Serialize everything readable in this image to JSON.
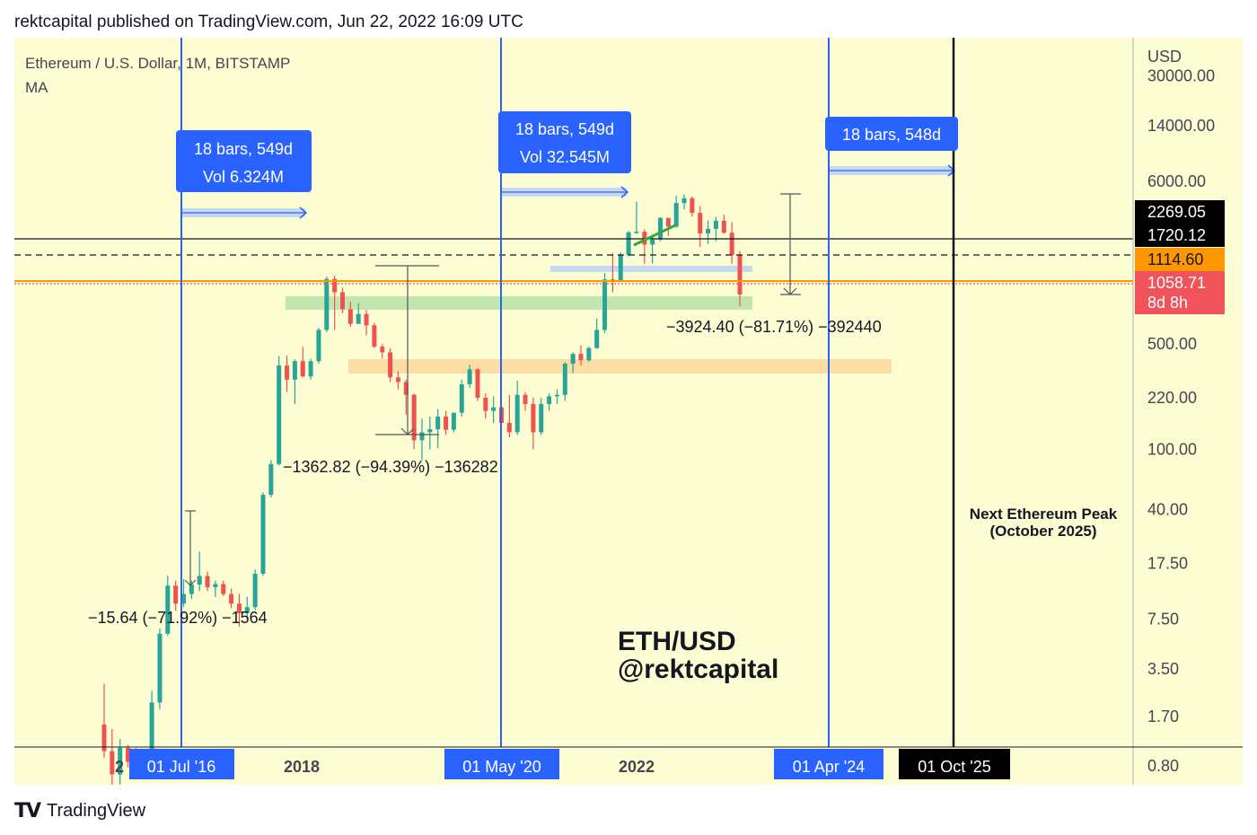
{
  "header": {
    "publisher_line": "rektcapital published on TradingView.com, Jun 22, 2022 16:09 UTC"
  },
  "footer": {
    "logo_icon": "tradingview-logo-icon",
    "brand": "TradingView"
  },
  "chart_data": {
    "type": "candlestick",
    "symbol_title": "Ethereum / U.S. Dollar, 1M, BITSTAMP",
    "indicator_label": "MA",
    "axis_unit": "USD",
    "y_scale": "log",
    "y_ticks": [
      "30000.00",
      "14000.00",
      "6000.00",
      "500.00",
      "220.00",
      "100.00",
      "40.00",
      "17.50",
      "7.50",
      "3.50",
      "1.70",
      "0.80"
    ],
    "x_ticks": [
      "2",
      "2018",
      "2022"
    ],
    "cycle_markers": [
      {
        "label": "01 Jul '16",
        "measure": [
          "18 bars, 549d",
          "Vol 6.324M"
        ]
      },
      {
        "label": "01 May '20",
        "measure": [
          "18 bars, 549d",
          "Vol 32.545M"
        ]
      },
      {
        "label": "01 Apr '24",
        "measure": [
          "18 bars, 548d"
        ]
      }
    ],
    "peak_marker": {
      "label": "01 Oct '25",
      "annotation": [
        "Next Ethereum Peak",
        "(October 2025)"
      ]
    },
    "drawdowns": [
      "−15.64 (−71.92%) −1564",
      "−1362.82 (−94.39%) −136282",
      "−3924.40 (−81.71%) −392440"
    ],
    "price_labels": [
      {
        "value": "2269.05",
        "bg": "#000000",
        "fg": "#ffffff"
      },
      {
        "value": "1720.12",
        "bg": "#000000",
        "fg": "#ffffff"
      },
      {
        "value": "1114.60",
        "bg": "#ff9800",
        "fg": "#131722"
      },
      {
        "value": "1058.71",
        "bg": "#f0545a",
        "fg": "#ffffff",
        "sub": "8d 8h"
      }
    ],
    "watermark": [
      "ETH/USD",
      "@rektcapital"
    ],
    "colors": {
      "up": "#26a69a",
      "down": "#ef5350",
      "cycle_line": "#2962ff",
      "measure_box": "#2962ff",
      "green_zone": "#b8e0a8",
      "orange_zone": "#fcd9a0",
      "blue_zone": "#c6d9f0",
      "ma_line": "#ff9800",
      "background": "#fdfdd4"
    },
    "candles": [
      [
        1.5,
        2.8,
        0.9,
        1.0
      ],
      [
        1.0,
        1.4,
        0.55,
        0.7
      ],
      [
        0.7,
        1.2,
        0.6,
        1.05
      ],
      [
        1.05,
        1.1,
        0.78,
        0.85
      ],
      [
        0.85,
        1.05,
        0.8,
        0.95
      ],
      [
        0.95,
        1.0,
        0.82,
        0.87
      ],
      [
        0.87,
        2.5,
        0.85,
        2.1
      ],
      [
        2.1,
        6.5,
        1.9,
        6.0
      ],
      [
        6.0,
        14.5,
        5.8,
        12.5
      ],
      [
        12.5,
        13.5,
        8.5,
        9.5
      ],
      [
        9.5,
        13.8,
        9.0,
        11.0
      ],
      [
        11.0,
        13.5,
        10.2,
        12.7
      ],
      [
        12.7,
        21,
        11.5,
        14.5
      ],
      [
        14.5,
        15.5,
        11.5,
        12.2
      ],
      [
        12.2,
        13.5,
        10.5,
        12.8
      ],
      [
        12.8,
        13.5,
        10.7,
        11.0
      ],
      [
        11.0,
        12.0,
        8.9,
        9.5
      ],
      [
        9.5,
        11.0,
        6.7,
        8.2
      ],
      [
        8.2,
        10.5,
        7.5,
        9.0
      ],
      [
        9.0,
        16,
        8.6,
        15.0
      ],
      [
        15.0,
        52,
        14.5,
        50
      ],
      [
        50,
        85,
        48,
        80
      ],
      [
        80,
        415,
        78,
        360
      ],
      [
        360,
        420,
        240,
        290
      ],
      [
        290,
        395,
        200,
        385
      ],
      [
        385,
        480,
        300,
        305
      ],
      [
        305,
        400,
        290,
        385
      ],
      [
        385,
        640,
        370,
        620
      ],
      [
        620,
        1400,
        600,
        1350
      ],
      [
        1350,
        1420,
        620,
        1100
      ],
      [
        1100,
        1180,
        800,
        850
      ],
      [
        850,
        950,
        650,
        680
      ],
      [
        680,
        935,
        680,
        790
      ],
      [
        790,
        840,
        570,
        665
      ],
      [
        665,
        690,
        470,
        480
      ],
      [
        480,
        500,
        400,
        440
      ],
      [
        440,
        470,
        280,
        300
      ],
      [
        300,
        330,
        250,
        280
      ],
      [
        280,
        290,
        170,
        230
      ],
      [
        230,
        235,
        100,
        115
      ],
      [
        115,
        160,
        85,
        130
      ],
      [
        130,
        165,
        100,
        136
      ],
      [
        136,
        185,
        102,
        165
      ],
      [
        165,
        180,
        125,
        135
      ],
      [
        135,
        175,
        130,
        175
      ],
      [
        175,
        290,
        165,
        270
      ],
      [
        270,
        365,
        255,
        340
      ],
      [
        340,
        345,
        210,
        220
      ],
      [
        220,
        235,
        160,
        180
      ],
      [
        180,
        225,
        150,
        190
      ],
      [
        190,
        195,
        145,
        150
      ],
      [
        150,
        230,
        120,
        130
      ],
      [
        130,
        285,
        125,
        230
      ],
      [
        230,
        240,
        180,
        200
      ],
      [
        200,
        220,
        100,
        130
      ],
      [
        130,
        220,
        125,
        200
      ],
      [
        200,
        235,
        180,
        225
      ],
      [
        225,
        250,
        200,
        230
      ],
      [
        230,
        380,
        210,
        370
      ],
      [
        370,
        440,
        320,
        430
      ],
      [
        430,
        490,
        360,
        390
      ],
      [
        390,
        480,
        380,
        470
      ],
      [
        470,
        740,
        465,
        620
      ],
      [
        620,
        1480,
        590,
        1340
      ],
      [
        1340,
        2000,
        1100,
        1300
      ],
      [
        1300,
        2030,
        1290,
        1940
      ],
      [
        1940,
        2800,
        1900,
        2750
      ],
      [
        2750,
        4380,
        2700,
        2775
      ],
      [
        2775,
        2880,
        1700,
        2280
      ],
      [
        2280,
        2550,
        1710,
        2460
      ],
      [
        2460,
        3450,
        2400,
        3430
      ],
      [
        3430,
        3400,
        2600,
        3000
      ],
      [
        3000,
        4800,
        2950,
        4300
      ],
      [
        4300,
        4900,
        3900,
        4630
      ],
      [
        4630,
        4740,
        3500,
        3700
      ],
      [
        3700,
        4100,
        2200,
        2700
      ],
      [
        2700,
        3290,
        2300,
        2900
      ],
      [
        2900,
        3480,
        2400,
        3280
      ],
      [
        3280,
        3600,
        2700,
        2730
      ],
      [
        2730,
        3200,
        1700,
        1940
      ],
      [
        1940,
        2070,
        890,
        1065
      ]
    ]
  }
}
